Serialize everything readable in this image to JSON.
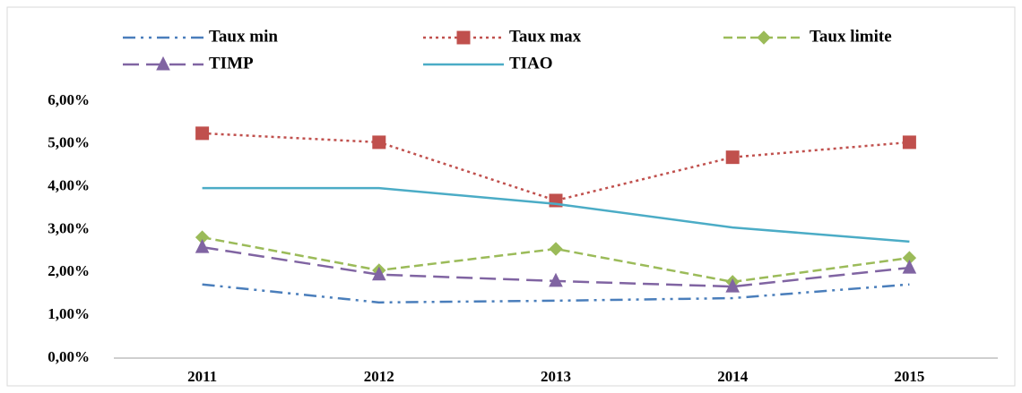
{
  "chart_data": {
    "type": "line",
    "categories": [
      "2011",
      "2012",
      "2013",
      "2014",
      "2015"
    ],
    "ylim": [
      0,
      6
    ],
    "yticks": [
      {
        "value": 0,
        "label": "0,00%"
      },
      {
        "value": 1,
        "label": "1,00%"
      },
      {
        "value": 2,
        "label": "2,00%"
      },
      {
        "value": 3,
        "label": "3,00%"
      },
      {
        "value": 4,
        "label": "4,00%"
      },
      {
        "value": 5,
        "label": "5,00%"
      },
      {
        "value": 6,
        "label": "6,00%"
      }
    ],
    "grid": false,
    "series": [
      {
        "name": "Taux min",
        "color": "#4a7ebb",
        "dash": "dash-dot-dot",
        "marker": "none",
        "values": [
          1.72,
          1.3,
          1.34,
          1.4,
          1.72
        ]
      },
      {
        "name": "Taux max",
        "color": "#c0504d",
        "dash": "dotted",
        "marker": "square",
        "values": [
          5.25,
          5.04,
          3.68,
          4.69,
          5.04
        ]
      },
      {
        "name": "Taux limite",
        "color": "#9bbb59",
        "dash": "dashed",
        "marker": "diamond",
        "values": [
          2.82,
          2.05,
          2.55,
          1.78,
          2.34
        ]
      },
      {
        "name": "TIMP",
        "color": "#8064a2",
        "dash": "long-dash",
        "marker": "triangle",
        "values": [
          2.59,
          1.95,
          1.8,
          1.67,
          2.11
        ]
      },
      {
        "name": "TIAO",
        "color": "#4bacc6",
        "dash": "solid",
        "marker": "none",
        "values": [
          3.97,
          3.97,
          3.6,
          3.05,
          2.72
        ]
      }
    ]
  }
}
